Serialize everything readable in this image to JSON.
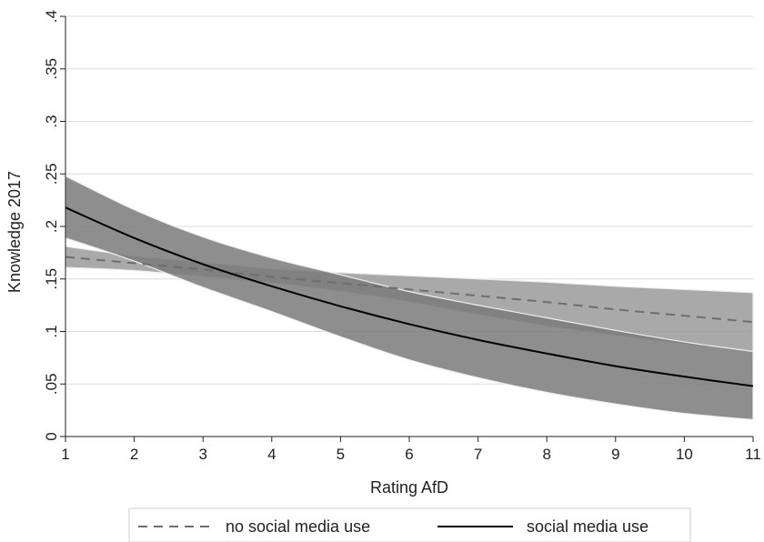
{
  "chart_data": {
    "type": "line",
    "title": "",
    "xlabel": "Rating AfD",
    "ylabel": "Knowledge 2017",
    "xlim": [
      1,
      11
    ],
    "ylim": [
      0,
      0.4
    ],
    "x_ticks": [
      1,
      2,
      3,
      4,
      5,
      6,
      7,
      8,
      9,
      10,
      11
    ],
    "x_tick_labels": [
      "1",
      "2",
      "3",
      "4",
      "5",
      "6",
      "7",
      "8",
      "9",
      "10",
      "11"
    ],
    "y_ticks": [
      0,
      0.05,
      0.1,
      0.15,
      0.2,
      0.25,
      0.3,
      0.35,
      0.4
    ],
    "y_tick_labels": [
      "0",
      ".05",
      ".1",
      ".15",
      ".2",
      ".25",
      ".3",
      ".35",
      ".4"
    ],
    "grid": true,
    "legend_position": "bottom",
    "x": [
      1,
      2,
      3,
      4,
      5,
      6,
      7,
      8,
      9,
      10,
      11
    ],
    "series": [
      {
        "name": "no social media use",
        "style": "dashed",
        "color": "#6e6e6e",
        "band_color": "#9a9a9a",
        "values": [
          0.171,
          0.165,
          0.159,
          0.152,
          0.146,
          0.14,
          0.134,
          0.128,
          0.121,
          0.115,
          0.109
        ],
        "lower": [
          0.161,
          0.158,
          0.152,
          0.146,
          0.138,
          0.128,
          0.116,
          0.105,
          0.096,
          0.088,
          0.081
        ],
        "upper": [
          0.181,
          0.172,
          0.166,
          0.16,
          0.156,
          0.153,
          0.15,
          0.147,
          0.143,
          0.14,
          0.137
        ]
      },
      {
        "name": "social media use",
        "style": "solid",
        "color": "#000000",
        "band_color": "#7a7a7a",
        "values": [
          0.218,
          0.189,
          0.164,
          0.143,
          0.124,
          0.107,
          0.092,
          0.079,
          0.067,
          0.057,
          0.048
        ],
        "lower": [
          0.189,
          0.167,
          0.142,
          0.119,
          0.095,
          0.073,
          0.056,
          0.042,
          0.031,
          0.022,
          0.016
        ],
        "upper": [
          0.248,
          0.216,
          0.19,
          0.17,
          0.154,
          0.138,
          0.125,
          0.113,
          0.101,
          0.09,
          0.081
        ]
      }
    ]
  }
}
